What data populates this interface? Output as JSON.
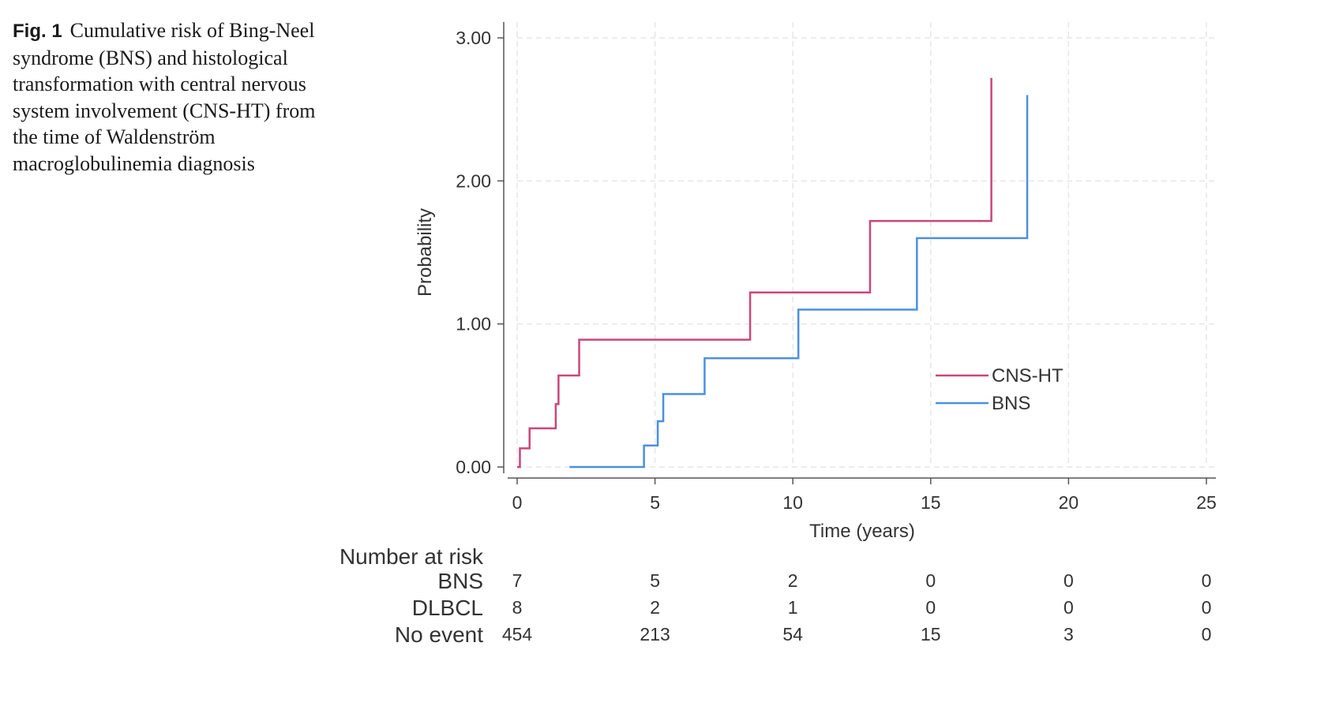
{
  "caption": {
    "label": "Fig. 1",
    "text": "Cumulative risk of Bing-Neel syndrome (BNS) and histological transformation with central nervous system involvement (CNS-HT) from the time of Waldenström macroglobulinemia diagnosis"
  },
  "chart_data": {
    "type": "line",
    "step": true,
    "xlabel": "Time (years)",
    "ylabel": "Probability",
    "xlim": [
      0,
      25
    ],
    "ylim": [
      0,
      3
    ],
    "xticks": [
      "0",
      "5",
      "10",
      "15",
      "20",
      "25"
    ],
    "yticks": [
      "0.00",
      "1.00",
      "2.00",
      "3.00"
    ],
    "grid": true,
    "legend_position": "lower-right",
    "series": [
      {
        "name": "CNS-HT",
        "color": "#c9467a",
        "x": [
          0,
          0.1,
          0.45,
          1.4,
          1.5,
          2.25,
          8.45,
          12.8,
          17.2
        ],
        "y": [
          0.0,
          0.13,
          0.27,
          0.44,
          0.64,
          0.89,
          1.22,
          1.72,
          2.72
        ]
      },
      {
        "name": "BNS",
        "color": "#4a90e2",
        "x": [
          1.9,
          4.6,
          5.1,
          5.3,
          6.8,
          10.2,
          14.5,
          18.5
        ],
        "y": [
          0.0,
          0.15,
          0.32,
          0.51,
          0.76,
          1.1,
          1.6,
          2.6
        ]
      }
    ],
    "risk_table": {
      "title": "Number at risk",
      "rows": [
        {
          "label": "BNS",
          "values": [
            "7",
            "5",
            "2",
            "0",
            "0",
            "0"
          ]
        },
        {
          "label": "DLBCL",
          "values": [
            "8",
            "2",
            "1",
            "0",
            "0",
            "0"
          ]
        },
        {
          "label": "No event",
          "values": [
            "454",
            "213",
            "54",
            "15",
            "3",
            "0"
          ]
        }
      ]
    }
  }
}
